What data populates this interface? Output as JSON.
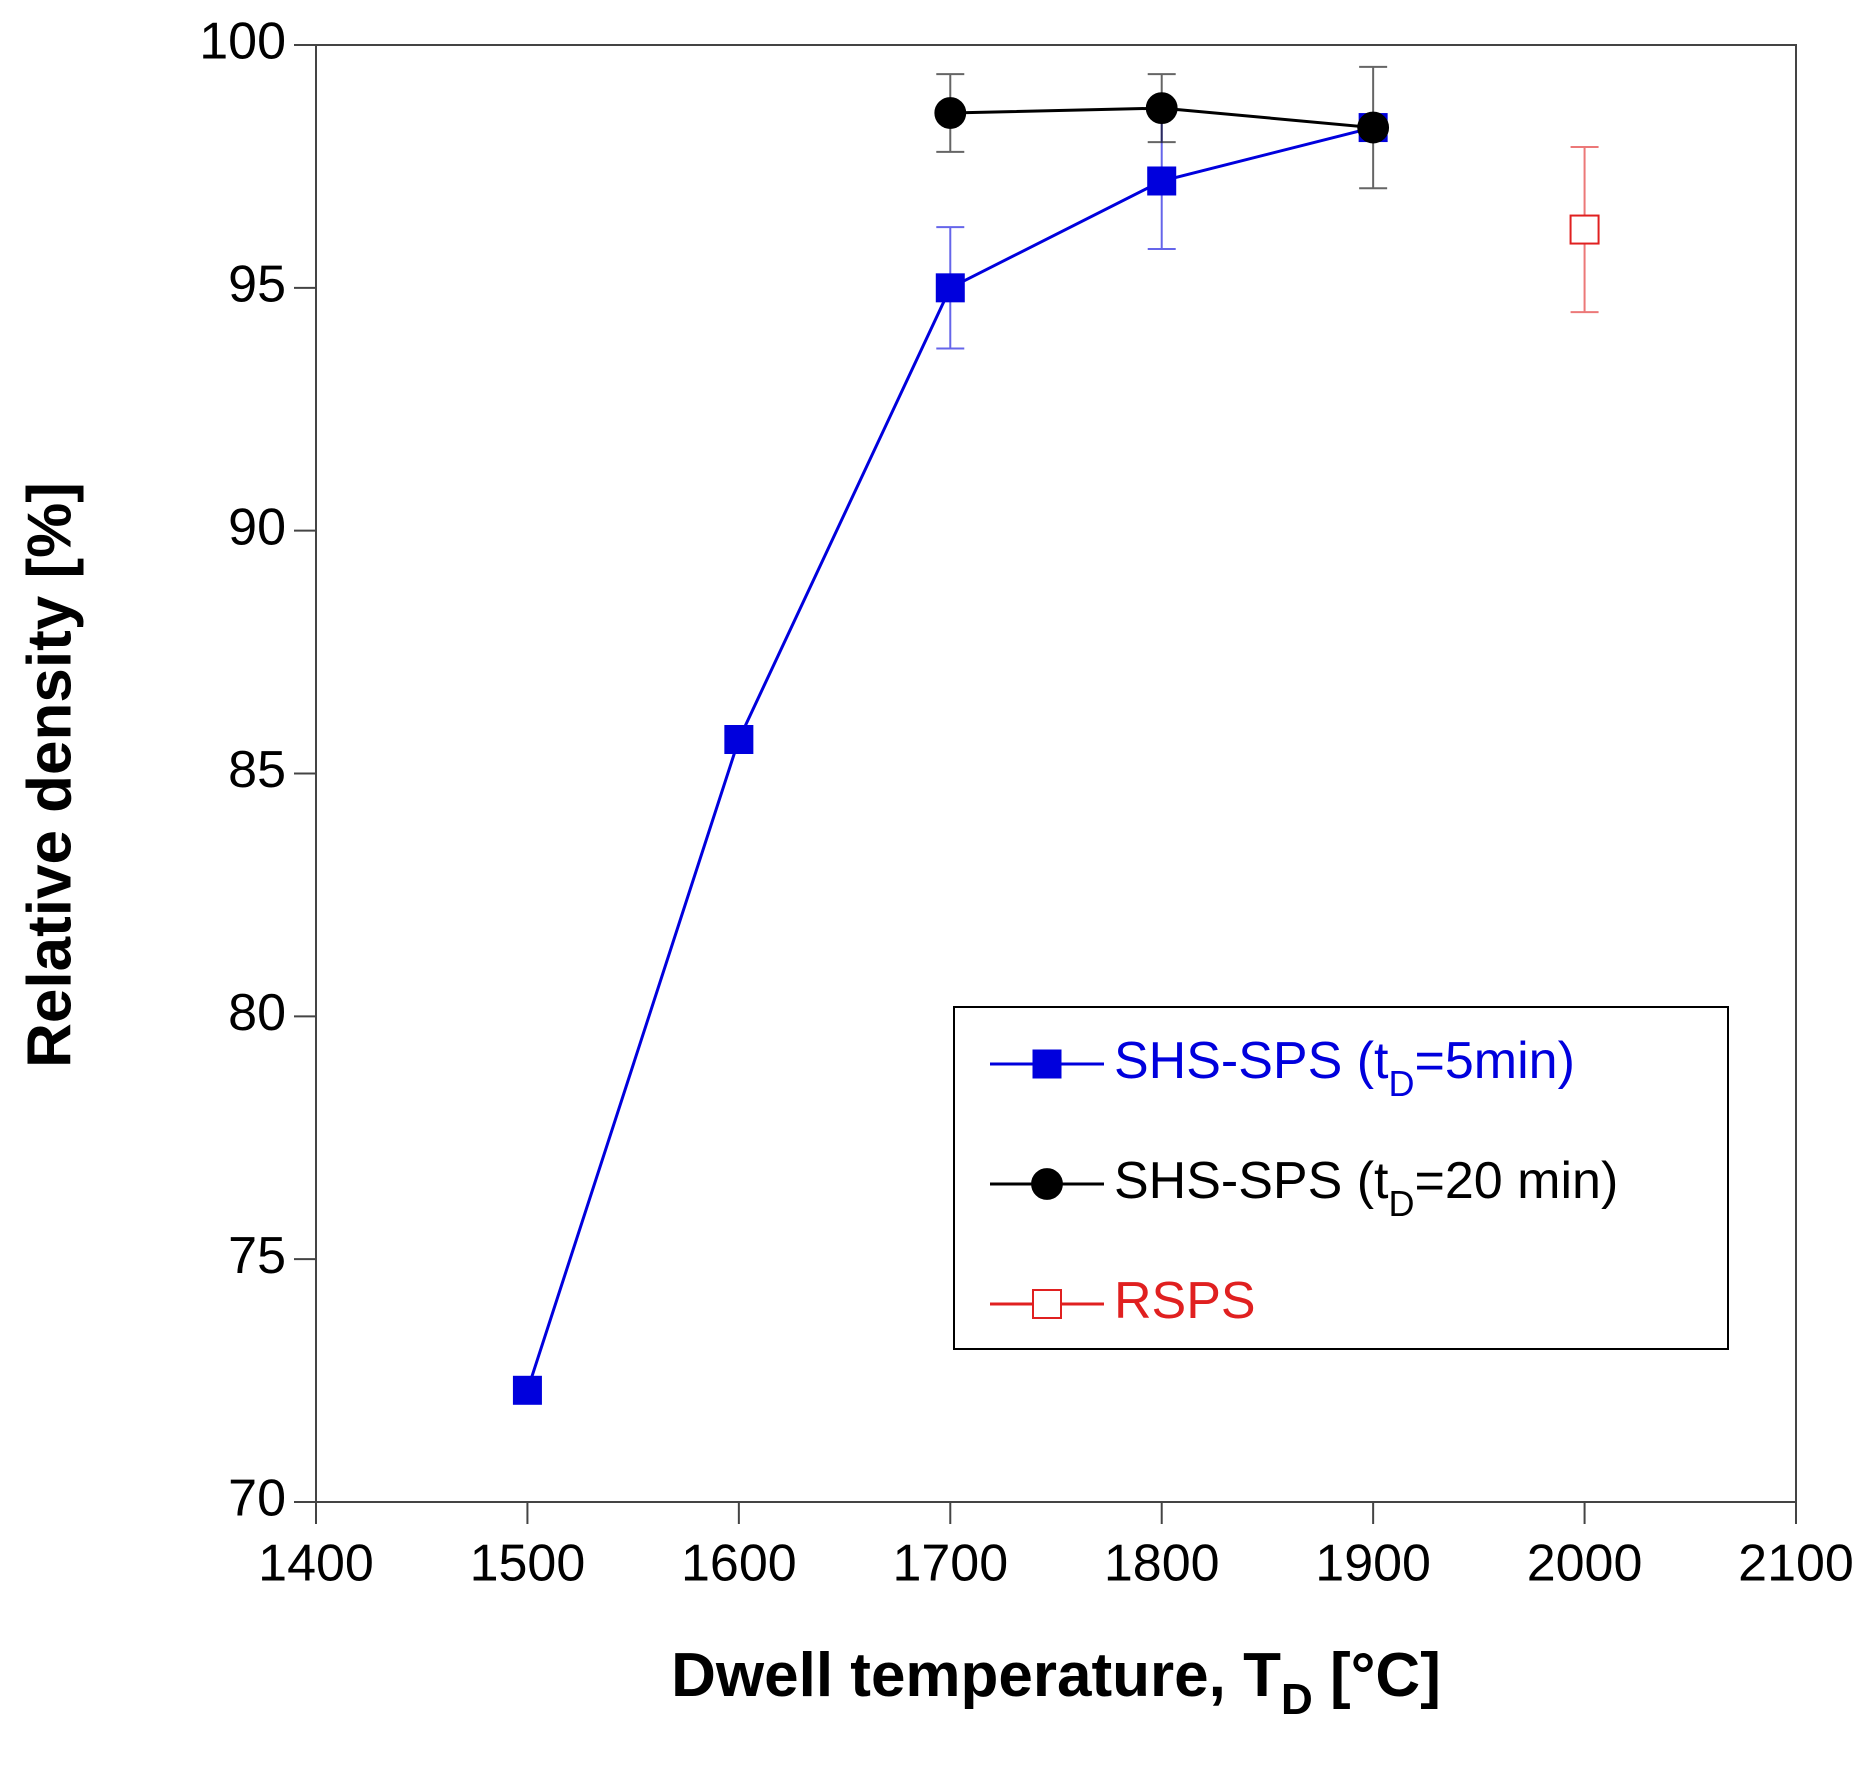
{
  "chart_data": {
    "type": "line",
    "xlabel": [
      "Dwell temperature, T",
      "D",
      " [°C]"
    ],
    "ylabel": "Relative density [%]",
    "xlim": [
      1400,
      2100
    ],
    "xticks": [
      1400,
      1500,
      1600,
      1700,
      1800,
      1900,
      2000,
      2100
    ],
    "ylim": [
      70,
      100
    ],
    "yticks": [
      70,
      75,
      80,
      85,
      90,
      95,
      100
    ],
    "grid": false,
    "legend": "lower right",
    "series": [
      {
        "name": [
          "SHS-SPS (t",
          "D",
          "=5min)"
        ],
        "color": "#0000dd",
        "marker": "square",
        "filled": true,
        "x": [
          1500,
          1600,
          1700,
          1800,
          1900
        ],
        "values": [
          72.3,
          85.7,
          95.0,
          97.2,
          98.3
        ],
        "errors": [
          null,
          null,
          1.25,
          1.4,
          null
        ]
      },
      {
        "name": [
          "SHS-SPS (t",
          "D",
          "=20 min)"
        ],
        "color": "#000000",
        "marker": "circle",
        "filled": true,
        "x": [
          1700,
          1800,
          1900
        ],
        "values": [
          98.6,
          98.7,
          98.3
        ],
        "errors": [
          0.8,
          0.7,
          1.25
        ]
      },
      {
        "name": [
          "RSPS"
        ],
        "color": "#e02020",
        "marker": "square",
        "filled": false,
        "x": [
          2000
        ],
        "values": [
          96.2
        ],
        "errors": [
          1.7
        ]
      }
    ]
  }
}
